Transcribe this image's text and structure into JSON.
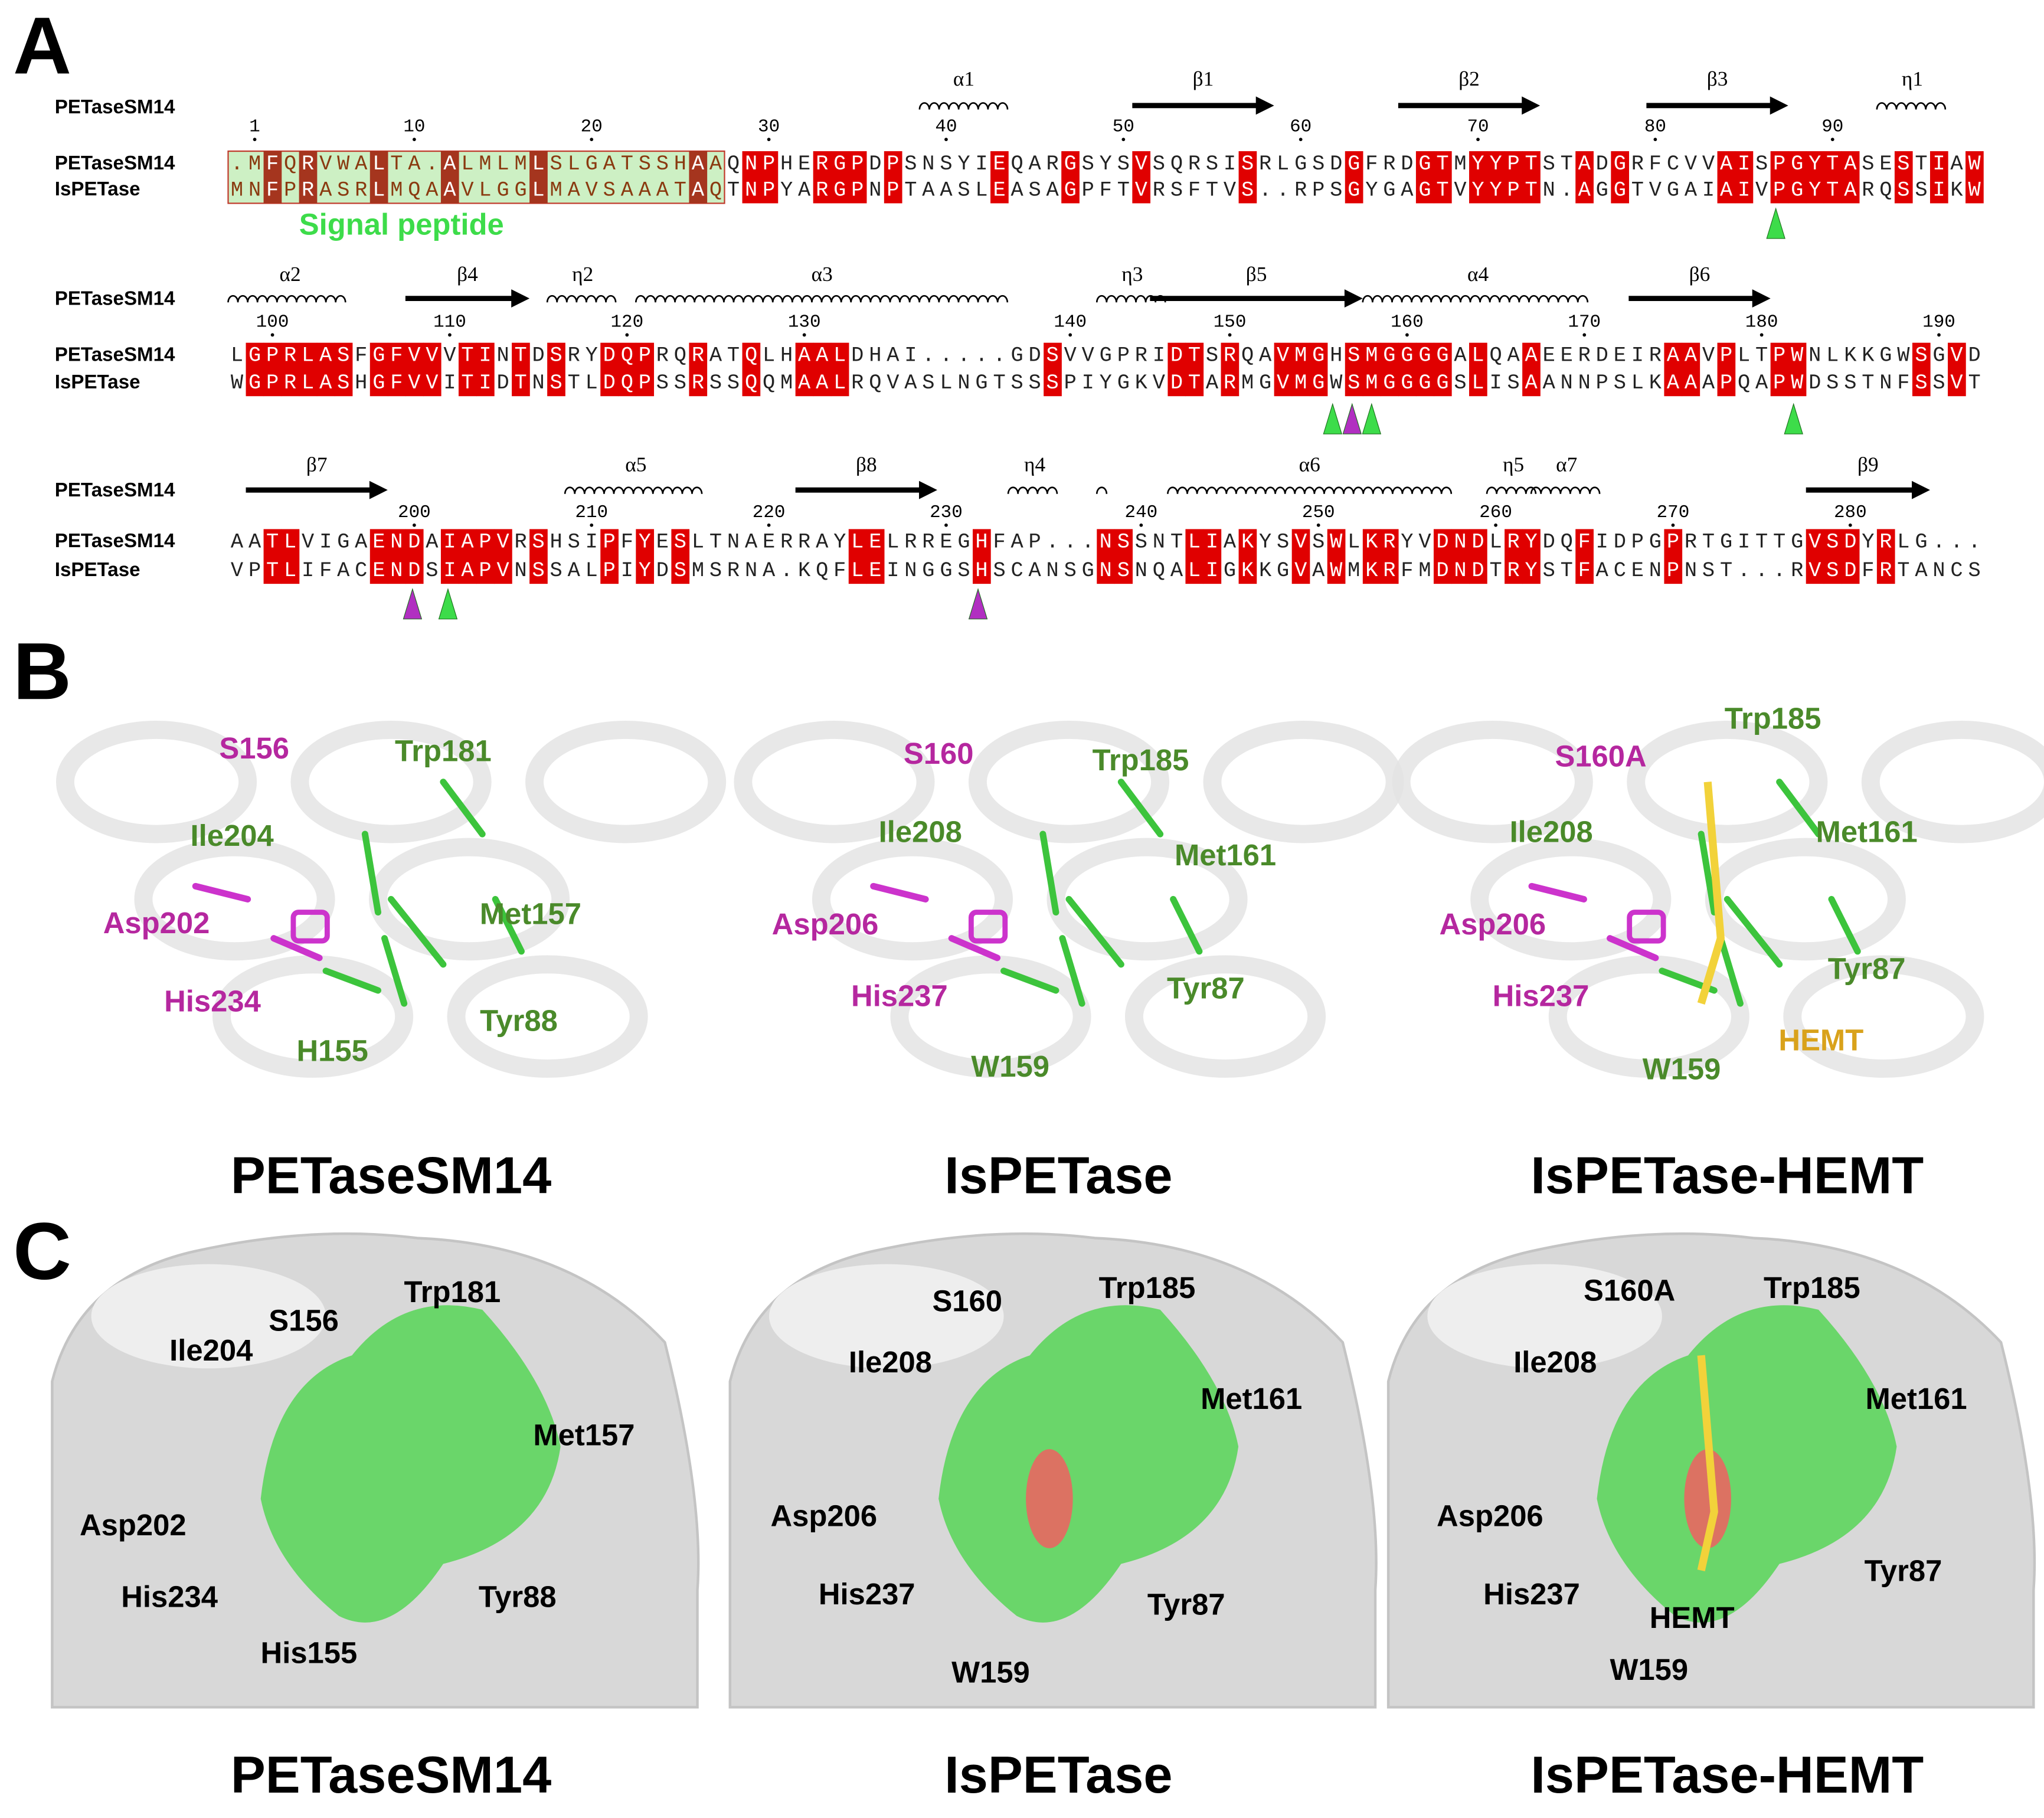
{
  "panel_a": {
    "label": "A",
    "signal_peptide": "Signal peptide",
    "blocks": [
      {
        "ruler_name": "PETaseSM14",
        "structure": [
          {
            "label": "α1",
            "kind": "helix"
          },
          {
            "label": "β1",
            "kind": "strand"
          },
          {
            "label": "β2",
            "kind": "strand"
          },
          {
            "label": "β3",
            "kind": "strand"
          },
          {
            "label": "η1",
            "kind": "helix"
          }
        ],
        "positions": [
          1,
          10,
          20,
          30,
          40,
          50,
          60,
          70,
          80,
          90
        ],
        "sequences": [
          {
            "name": "PETaseSM14",
            "residues": ".MFQRVWALTA.ALMLMLSLGATSSHAAQNPHERGPDPSNSYIEQARGSYSVSQRSISRLGSDGFRDGTMYYPTSTADGRFCVVAISPGYTASESTIAW"
          },
          {
            "name": "IsPETase",
            "residues": "MNFPRASRLMQAAVLGGLMAVSAAATAQTNPYARGPNPTAASLEASAGPFTVRSFTVS..RPSGYGAGTVYYPTN.AGGTVGAIAIVPGYTARQSSIKW"
          }
        ]
      },
      {
        "ruler_name": "PETaseSM14",
        "structure": [
          {
            "label": "α2",
            "kind": "helix"
          },
          {
            "label": "β4",
            "kind": "strand"
          },
          {
            "label": "η2",
            "kind": "helix"
          },
          {
            "label": "α3",
            "kind": "helix"
          },
          {
            "label": "η3",
            "kind": "helix"
          },
          {
            "label": "β5",
            "kind": "strand"
          },
          {
            "label": "α4",
            "kind": "helix"
          },
          {
            "label": "β6",
            "kind": "strand"
          }
        ],
        "positions": [
          100,
          110,
          120,
          130,
          140,
          150,
          160,
          170,
          180,
          190
        ],
        "sequences": [
          {
            "name": "PETaseSM14",
            "residues": "LGPRLASFGFVVVTINTDSRYDQPRQRATQLHAALDHAI.....GDSVVGPRIDTSRQAVMGHSMGGGGALQAAEERDEIRAAVPLTPWNLKKGWSGVD"
          },
          {
            "name": "IsPETase",
            "residues": "WGPRLASHGFVVITIDTNSTLDQPSSRSSQQMAALRQVASLNGTSSSPIYGKVDTARMGVMGWSMGGGGSLISAANNPSLKAAAPQAPWDSSTNFSSVT"
          }
        ]
      },
      {
        "ruler_name": "PETaseSM14",
        "structure": [
          {
            "label": "β7",
            "kind": "strand"
          },
          {
            "label": "α5",
            "kind": "helix"
          },
          {
            "label": "β8",
            "kind": "strand"
          },
          {
            "label": "η4",
            "kind": "helix"
          },
          {
            "label": "α6",
            "kind": "helix"
          },
          {
            "label": "η5",
            "kind": "helix"
          },
          {
            "label": "α7",
            "kind": "helix"
          },
          {
            "label": "β9",
            "kind": "strand"
          }
        ],
        "positions": [
          200,
          210,
          220,
          230,
          240,
          250,
          260,
          270,
          280
        ],
        "sequences": [
          {
            "name": "PETaseSM14",
            "residues": "AATLVIGAENDAIAPVRSHSIPFYESLTNAERRAYLELRREGHFAP...NSSNTLIAKYSVSWLKRYVDNDLRYDQFIDPGPRTGITTGVSDYRLG..."
          },
          {
            "name": "IsPETase",
            "residues": "VPTLIFACENDSIAPVNSSALPIYDSMSRNA.KQFLEINGGSHSCANSGNSNQALIGKKGVAWMKRFMDNDTRYSTFACENPNST...RVSDFRTANCS"
          }
        ]
      }
    ]
  },
  "panel_b": {
    "label": "B",
    "structures": [
      {
        "title": "PETaseSM14",
        "labels": [
          {
            "text": "S156",
            "color": "#b5279f"
          },
          {
            "text": "Trp181",
            "color": "#4a8a2a"
          },
          {
            "text": "Ile204",
            "color": "#4a8a2a"
          },
          {
            "text": "Asp202",
            "color": "#b5279f"
          },
          {
            "text": "Met157",
            "color": "#4a8a2a"
          },
          {
            "text": "His234",
            "color": "#b5279f"
          },
          {
            "text": "Tyr88",
            "color": "#4a8a2a"
          },
          {
            "text": "H155",
            "color": "#4a8a2a"
          }
        ]
      },
      {
        "title": "IsPETase",
        "labels": [
          {
            "text": "S160",
            "color": "#b5279f"
          },
          {
            "text": "Trp185",
            "color": "#4a8a2a"
          },
          {
            "text": "Ile208",
            "color": "#4a8a2a"
          },
          {
            "text": "Met161",
            "color": "#4a8a2a"
          },
          {
            "text": "Asp206",
            "color": "#b5279f"
          },
          {
            "text": "Tyr87",
            "color": "#4a8a2a"
          },
          {
            "text": "His237",
            "color": "#b5279f"
          },
          {
            "text": "W159",
            "color": "#4a8a2a"
          }
        ]
      },
      {
        "title": "IsPETase-HEMT",
        "labels": [
          {
            "text": "Trp185",
            "color": "#4a8a2a"
          },
          {
            "text": "S160A",
            "color": "#b5279f"
          },
          {
            "text": "Ile208",
            "color": "#4a8a2a"
          },
          {
            "text": "Met161",
            "color": "#4a8a2a"
          },
          {
            "text": "Asp206",
            "color": "#b5279f"
          },
          {
            "text": "Tyr87",
            "color": "#4a8a2a"
          },
          {
            "text": "His237",
            "color": "#b5279f"
          },
          {
            "text": "HEMT",
            "color": "#d9a21b"
          },
          {
            "text": "W159",
            "color": "#4a8a2a"
          }
        ]
      }
    ]
  },
  "panel_c": {
    "label": "C",
    "structures": [
      {
        "title": "PETaseSM14",
        "labels": [
          "Trp181",
          "S156",
          "Ile204",
          "Met157",
          "Asp202",
          "His234",
          "Tyr88",
          "His155"
        ]
      },
      {
        "title": "IsPETase",
        "labels": [
          "S160",
          "Trp185",
          "Ile208",
          "Met161",
          "Asp206",
          "His237",
          "Tyr87",
          "W159"
        ]
      },
      {
        "title": "IsPETase-HEMT",
        "labels": [
          "S160A",
          "Trp185",
          "Ile208",
          "Met161",
          "Asp206",
          "Tyr87",
          "His237",
          "HEMT",
          "W159"
        ]
      }
    ]
  }
}
